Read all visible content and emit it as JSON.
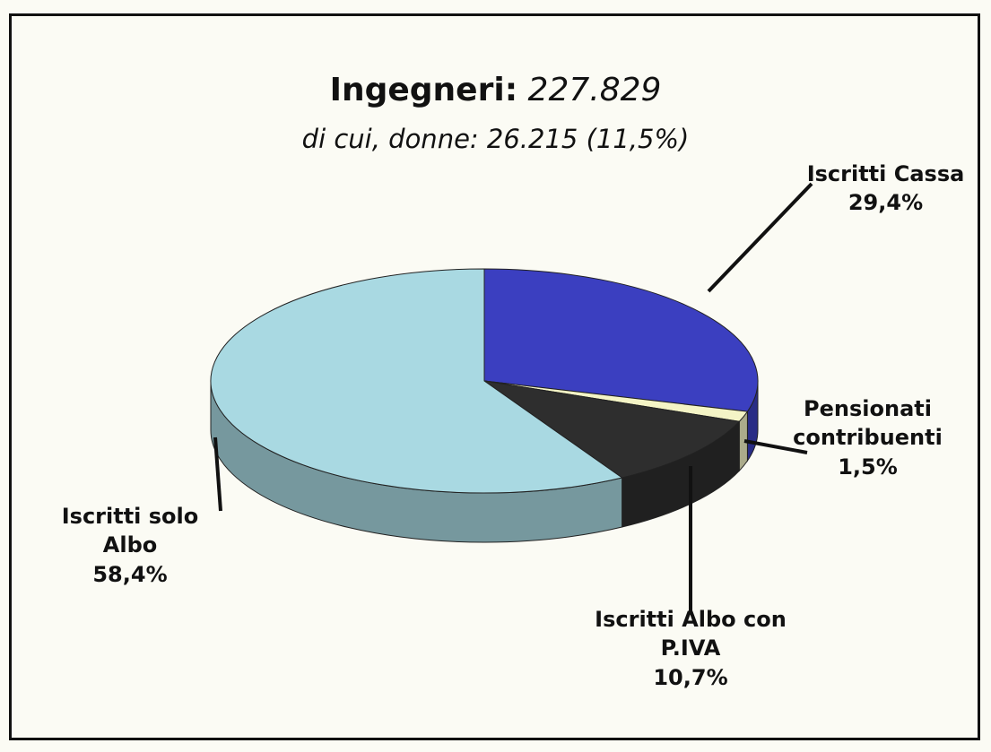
{
  "chart_data": {
    "type": "pie",
    "title": "Ingegneri:",
    "title_value": "227.829",
    "subtitle": "di cui, donne: 26.215 (11,5%)",
    "categories": [
      "Iscritti Cassa",
      "Pensionati contribuenti",
      "Iscritti Albo con P.IVA",
      "Iscritti solo Albo"
    ],
    "values": [
      29.4,
      1.5,
      10.7,
      58.4
    ],
    "value_labels": [
      "29,4%",
      "1,5%",
      "10,7%",
      "58,4%"
    ],
    "colors": [
      "#3b3fc0",
      "#f4f4c6",
      "#2e2e2e",
      "#a9d9e2"
    ]
  }
}
